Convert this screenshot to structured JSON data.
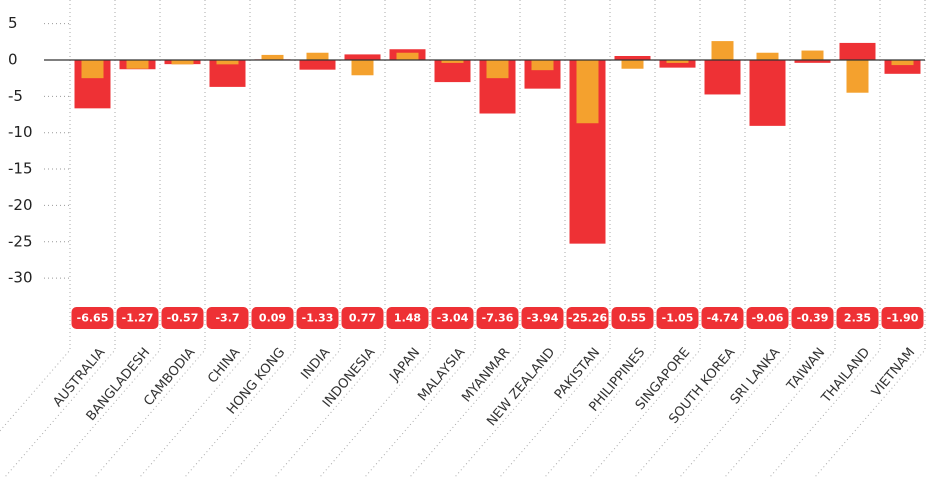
{
  "chart_data": {
    "type": "bar",
    "categories": [
      "AUSTRALIA",
      "BANGLADESH",
      "CAMBODIA",
      "CHINA",
      "HONG KONG",
      "INDIA",
      "INDONESIA",
      "JAPAN",
      "MALAYSIA",
      "MYANMAR",
      "NEW ZEALAND",
      "PAKISTAN",
      "PHILIPPINES",
      "SINGAPORE",
      "SOUTH KOREA",
      "SRI LANKA",
      "TAIWAN",
      "THAILAND",
      "VIETNAM"
    ],
    "series": [
      {
        "color": "#ee3135",
        "values": [
          -6.65,
          -1.27,
          -0.57,
          -3.7,
          0.09,
          -1.33,
          0.77,
          1.48,
          -3.04,
          -7.36,
          -3.94,
          -25.26,
          0.55,
          -1.05,
          -4.74,
          -9.06,
          -0.39,
          2.35,
          -1.9
        ],
        "value_labels": [
          "-6.65",
          "-1.27",
          "-0.57",
          "-3.7",
          "0.09",
          "-1.33",
          "0.77",
          "1.48",
          "-3.04",
          "-7.36",
          "-3.94",
          "-25.26",
          "0.55",
          "-1.05",
          "-4.74",
          "-9.06",
          "-0.39",
          "2.35",
          "-1.90"
        ]
      },
      {
        "color": "#f4a12e",
        "values": [
          -2.5,
          -1.2,
          -0.6,
          -0.6,
          0.7,
          1.0,
          -2.1,
          1.0,
          -0.4,
          -2.5,
          -1.4,
          -8.7,
          -1.2,
          -0.4,
          2.6,
          1.0,
          1.3,
          -4.5,
          -0.7
        ]
      }
    ],
    "ylim": [
      -32,
      7
    ],
    "yticks": [
      5,
      0,
      -5,
      -10,
      -15,
      -20,
      -25,
      -30
    ],
    "grid": true
  }
}
